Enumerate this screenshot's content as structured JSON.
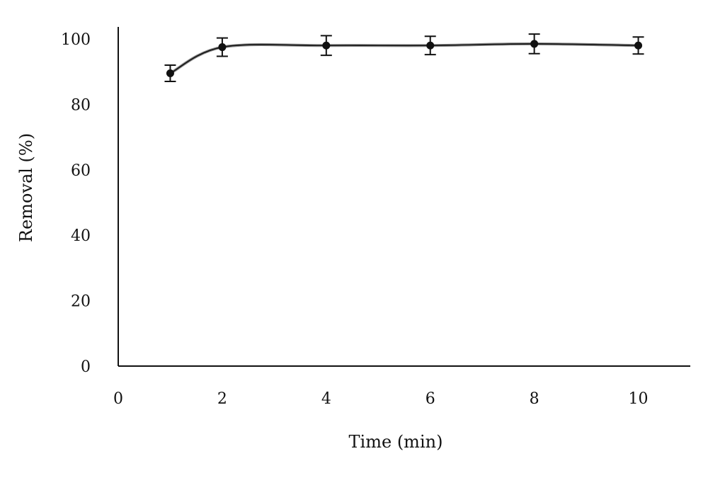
{
  "chart_data": {
    "type": "line",
    "title": "",
    "xlabel": "Time (min)",
    "ylabel": "Removal (%)",
    "xlim": [
      0,
      11
    ],
    "ylim": [
      0,
      100
    ],
    "x_ticks": [
      0,
      2,
      4,
      6,
      8,
      10
    ],
    "y_ticks": [
      0,
      20,
      40,
      60,
      80,
      100
    ],
    "grid": false,
    "legend": "none",
    "series": [
      {
        "x": [
          1,
          2,
          4,
          6,
          8,
          10
        ],
        "values": [
          89.5,
          97.5,
          98,
          98,
          98.5,
          98
        ],
        "error": [
          2.5,
          2.8,
          3.0,
          2.8,
          3.0,
          2.6
        ],
        "color": "#111111",
        "marker": "circle",
        "line": "smooth"
      }
    ]
  }
}
